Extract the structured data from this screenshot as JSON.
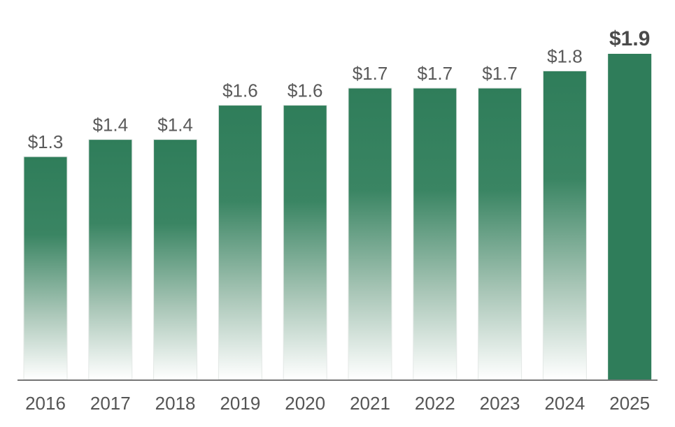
{
  "chart_data": {
    "type": "bar",
    "title": "",
    "xlabel": "",
    "ylabel": "",
    "categories": [
      "2016",
      "2017",
      "2018",
      "2019",
      "2020",
      "2021",
      "2022",
      "2023",
      "2024",
      "2025"
    ],
    "values": [
      1.3,
      1.4,
      1.4,
      1.6,
      1.6,
      1.7,
      1.7,
      1.7,
      1.8,
      1.9
    ],
    "data_labels": [
      "$1.3",
      "$1.4",
      "$1.4",
      "$1.6",
      "$1.6",
      "$1.7",
      "$1.7",
      "$1.7",
      "$1.8",
      "$1.9"
    ],
    "highlighted_category": "2025",
    "ylim": [
      0,
      1.9
    ],
    "grid": false,
    "colors": {
      "bar": "#2f7d5a",
      "bar_fade": "#ffffff",
      "axis": "#777777",
      "text": "#5a5a5a"
    }
  }
}
